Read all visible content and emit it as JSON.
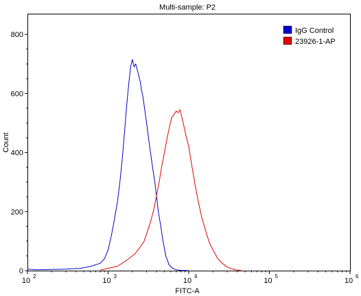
{
  "chart_data": {
    "type": "line",
    "title": "Multi-sample: P2",
    "xlabel": "FITC-A",
    "ylabel": "Count",
    "x_scale": "log",
    "xlim": [
      100,
      1000000
    ],
    "ylim": [
      0,
      870
    ],
    "y_ticks": [
      0,
      200,
      400,
      600,
      800
    ],
    "x_ticks": [
      100,
      1000,
      10000,
      100000,
      1000000
    ],
    "x_tick_labels": [
      {
        "base": "10",
        "exp": "2"
      },
      {
        "base": "10",
        "exp": "3"
      },
      {
        "base": "10",
        "exp": "4"
      },
      {
        "base": "10",
        "exp": "5"
      },
      {
        "base": "10",
        "exp": "6"
      }
    ],
    "legend_position": "top-right",
    "series": [
      {
        "name": "IgG Control",
        "color": "#0000cc",
        "x": [
          100,
          130,
          200,
          300,
          450,
          600,
          800,
          900,
          1000,
          1100,
          1200,
          1300,
          1400,
          1500,
          1600,
          1700,
          1800,
          1900,
          2000,
          2100,
          2200,
          2300,
          2400,
          2500,
          2600,
          2700,
          2800,
          2900,
          3000,
          3200,
          3400,
          3600,
          3800,
          4000,
          4200,
          4500,
          4800,
          5200,
          5700,
          6300,
          7000,
          8000,
          10000
        ],
        "y": [
          5,
          3,
          4,
          5,
          8,
          14,
          25,
          40,
          70,
          120,
          175,
          230,
          300,
          380,
          470,
          560,
          630,
          690,
          715,
          690,
          700,
          680,
          660,
          640,
          610,
          590,
          560,
          530,
          500,
          440,
          390,
          340,
          300,
          250,
          200,
          150,
          100,
          50,
          20,
          8,
          3,
          1,
          0
        ]
      },
      {
        "name": "23926-1-AP",
        "color": "#dd0000",
        "x": [
          800,
          1000,
          1300,
          1600,
          1900,
          2200,
          2500,
          2800,
          3100,
          3400,
          3700,
          4000,
          4300,
          4600,
          5000,
          5400,
          5800,
          6200,
          6600,
          7000,
          7400,
          7800,
          8200,
          8700,
          9200,
          10000,
          11000,
          12000,
          13000,
          14500,
          16000,
          18000,
          20000,
          23000,
          26000,
          30000,
          35000,
          40000,
          45000
        ],
        "y": [
          2,
          8,
          15,
          30,
          45,
          60,
          80,
          100,
          135,
          170,
          210,
          255,
          300,
          350,
          400,
          450,
          490,
          520,
          530,
          540,
          535,
          545,
          520,
          490,
          460,
          420,
          350,
          290,
          240,
          180,
          140,
          95,
          70,
          40,
          25,
          12,
          5,
          2,
          0
        ]
      }
    ]
  }
}
